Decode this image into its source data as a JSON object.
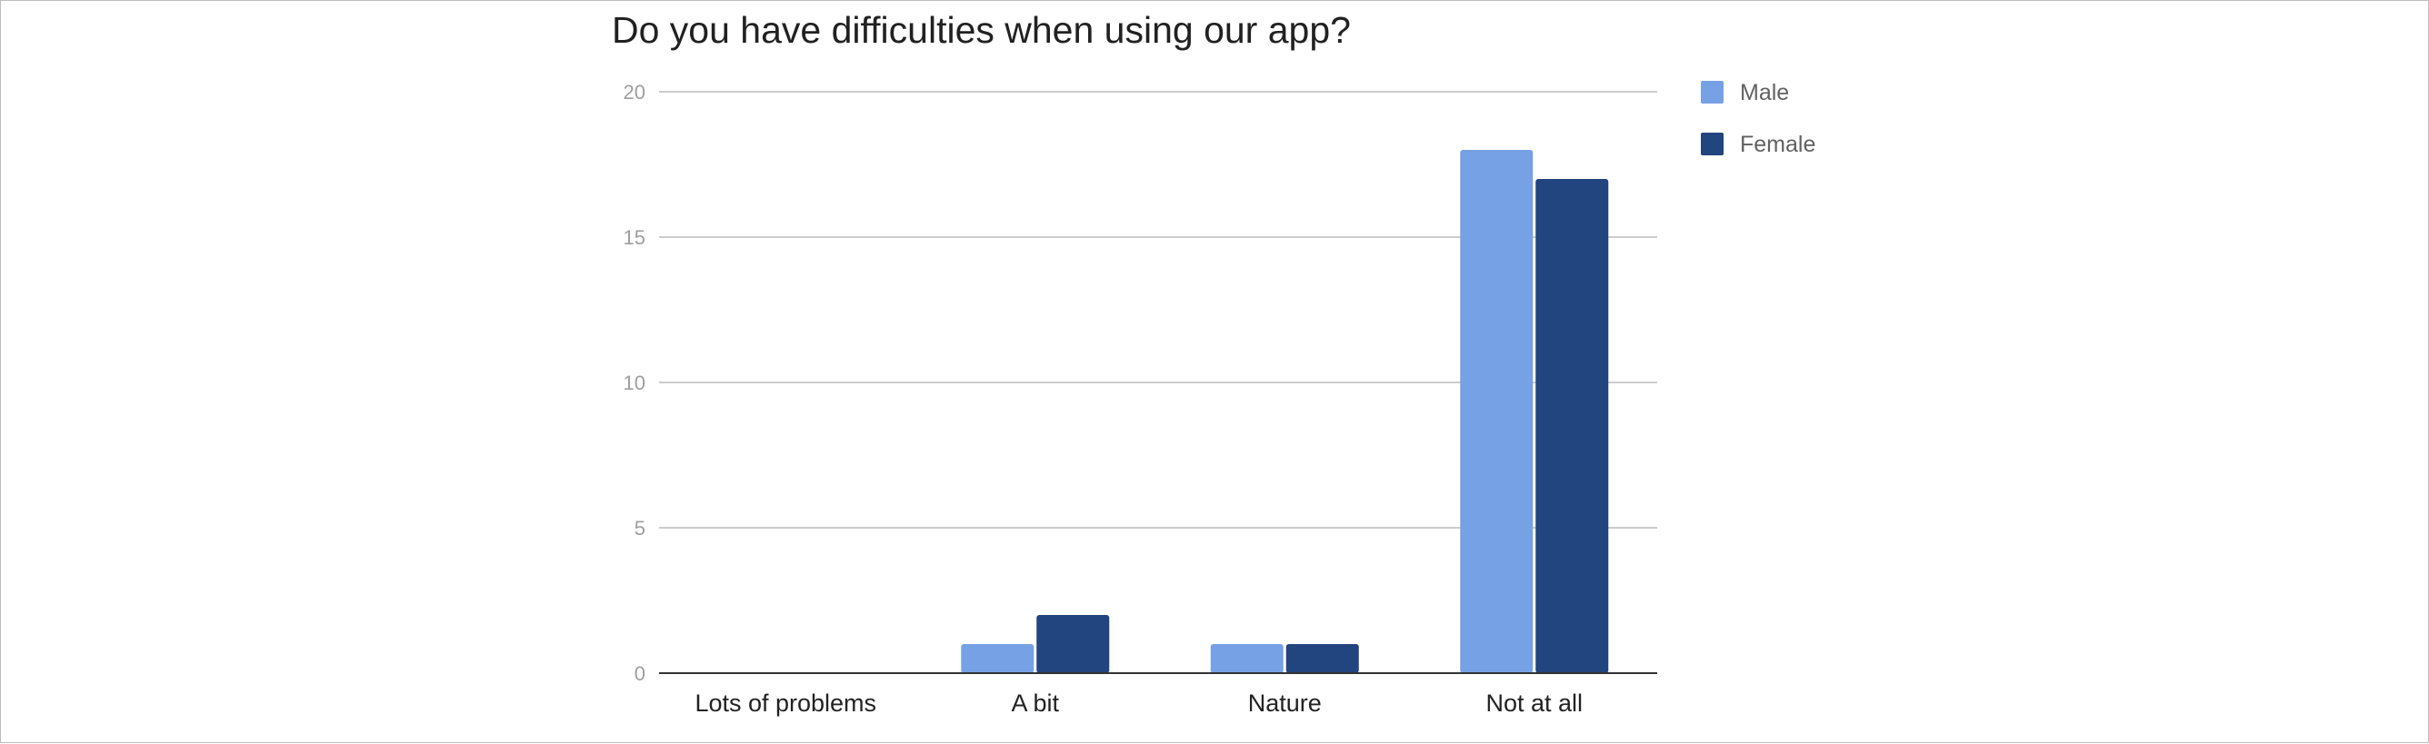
{
  "chart_data": {
    "type": "bar",
    "title": "Do you have difficulties when using our app?",
    "categories": [
      "Lots of problems",
      "A bit",
      "Nature",
      "Not at all"
    ],
    "series": [
      {
        "name": "Male",
        "color": "#77a1e5",
        "values": [
          0,
          1,
          1,
          18
        ]
      },
      {
        "name": "Female",
        "color": "#22447f",
        "values": [
          0,
          2,
          1,
          17
        ]
      }
    ],
    "ylim": [
      0,
      20
    ],
    "yticks": [
      "0",
      "5",
      "10",
      "15",
      "20"
    ],
    "xlabel": "",
    "ylabel": "",
    "grid": true,
    "legend": "right"
  }
}
